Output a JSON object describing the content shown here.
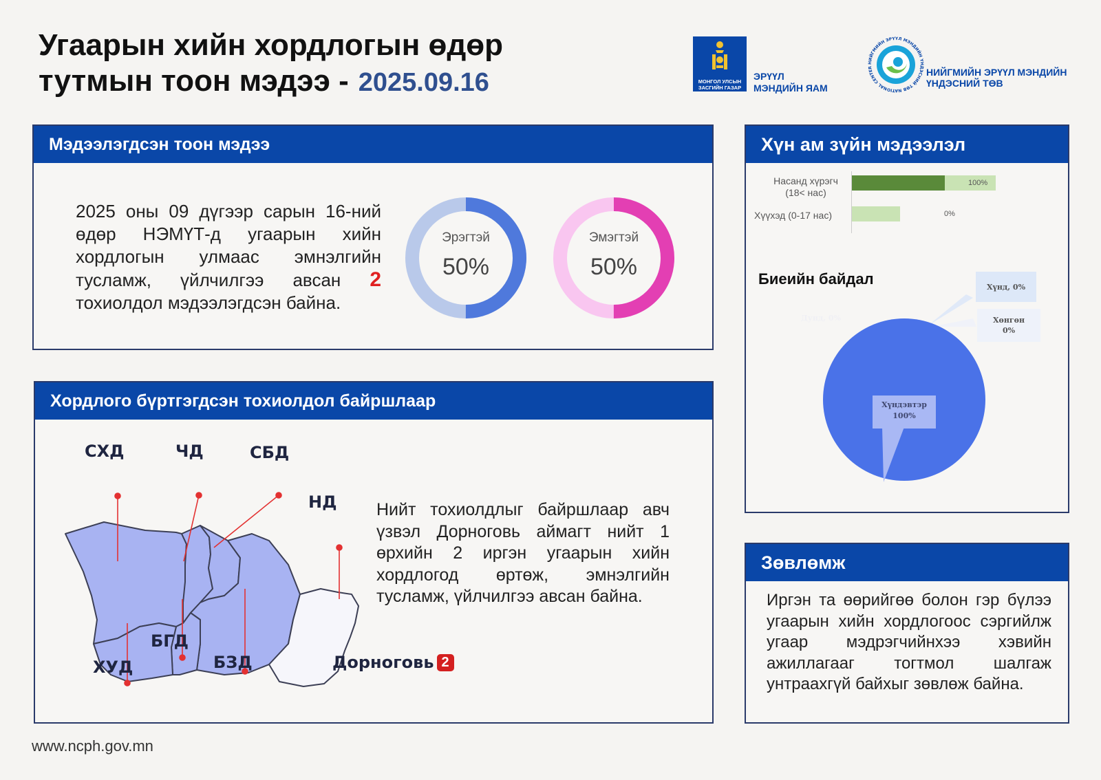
{
  "header": {
    "title_line1": "Угаарын хийн хордлогын өдөр",
    "title_line2": "тутмын тоон мэдээ -",
    "date": "2025.09.16",
    "ministry_emblem_text": "МОНГОЛ УЛСЫН ЗАСГИЙН ГАЗАР",
    "ministry_name_line1": "ЭРҮҮЛ",
    "ministry_name_line2": "МЭНДИЙН ЯАМ",
    "ncph_name_line1": "НИЙГМИЙН ЭРҮҮЛ МЭНДИЙН",
    "ncph_name_line2": "ҮНДЭСНИЙ ТӨВ",
    "ncph_ring_text": "НИЙГМИЙН ЭРҮҮЛ МЭНДИЙН ҮНДЭСНИЙ ТӨВ NATIONAL CENTER FOR PUBLIC HEALTH"
  },
  "reported": {
    "heading": "Мэдээлэгдсэн тоон мэдээ",
    "text_before": "2025 оны 09 дүгээр сарын 16-ний өдөр НЭМҮТ-д угаарын хийн хордлогын улмаас эмнэлгийн тусламж, үйлчилгээ авсан",
    "count": "2",
    "text_after": "тохиолдол мэдээлэгдсэн байна.",
    "male_label": "Эрэгтэй",
    "male_pct": "50%",
    "male_value": 50,
    "female_label": "Эмэгтэй",
    "female_pct": "50%",
    "female_value": 50,
    "colors": {
      "male": "#4f79dc",
      "male_track": "#b9c9ea",
      "female": "#e33fb3",
      "female_track": "#f9c6f0"
    }
  },
  "location": {
    "heading": "Хордлого бүртгэгдсэн тохиолдол байршлаар",
    "districts": [
      "СХД",
      "ЧД",
      "СБД",
      "НД",
      "БГД",
      "ХУД",
      "БЗД"
    ],
    "province": "Дорноговь",
    "province_count": "2",
    "text": "Нийт тохиолдлыг байршлаар авч үзвэл Дорноговь аймагт нийт 1 өрхийн 2 иргэн угаарын хийн хордлогод өртөж, эмнэлгийн тусламж, үйлчилгээ авсан байна."
  },
  "demographics": {
    "heading": "Хүн ам зүйн мэдээлэл",
    "body_heading": "Биеийн байдал",
    "website": "www.ncph.gov.mn"
  },
  "advice": {
    "heading": "Зөвлөмж",
    "text": "Иргэн та өөрийгөө болон гэр бүлээ угаарын хийн хордлогоос сэргийлж угаар мэдрэгчийнхээ хэвийн ажиллагааг тогтмол шалгаж унтраахгүй байхыг зөвлөж байна."
  },
  "chart_data": [
    {
      "type": "bar",
      "orientation": "horizontal",
      "categories": [
        "Насанд хүрэгч (18< нас)",
        "Хүүхэд (0-17 нас)"
      ],
      "values": [
        100,
        0
      ],
      "data_labels": [
        "100%",
        "0%"
      ],
      "colors": {
        "value": "#5a8a3a",
        "track": "#c9e3b4"
      }
    },
    {
      "type": "pie",
      "labels": [
        "Хүнд",
        "Хөнгөн",
        "Дунд",
        "Хүндэвтэр"
      ],
      "values": [
        0,
        0,
        0,
        100
      ],
      "data_labels": [
        "Хүнд, 0%",
        "Хөнгөн\n0%",
        "Дунд, 0%",
        "Хүндэвтэр\n100%"
      ],
      "colors": {
        "main": "#4a72e8"
      }
    }
  ]
}
